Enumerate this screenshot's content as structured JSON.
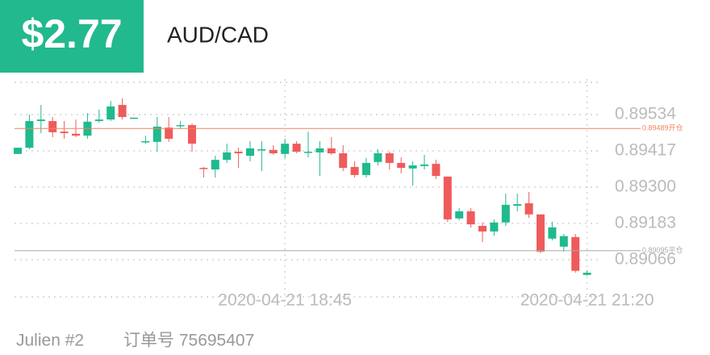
{
  "header": {
    "amount": "$2.77",
    "symbol": "AUD/CAD"
  },
  "footer": {
    "user": "Julien #2",
    "order": "订单号 75695407"
  },
  "chart_data": {
    "type": "candlestick",
    "categories": [
      null,
      null,
      null,
      null,
      null,
      null,
      null,
      null,
      null,
      null,
      null,
      null,
      null,
      null,
      null,
      null,
      null,
      null,
      null,
      null,
      null,
      null,
      null,
      "2020-04-21 18:45",
      null,
      null,
      null,
      null,
      null,
      null,
      null,
      null,
      null,
      null,
      null,
      null,
      null,
      null,
      null,
      null,
      null,
      null,
      null,
      null,
      null,
      null,
      null,
      null,
      null,
      "2020-04-21 21:20"
    ],
    "open": [
      0.89407,
      0.89427,
      0.89513,
      0.89513,
      0.89479,
      0.89472,
      0.89466,
      0.89513,
      0.89518,
      0.89565,
      0.89521,
      0.89446,
      0.89446,
      0.89492,
      0.895,
      0.895,
      0.89362,
      0.89357,
      0.89388,
      0.89414,
      0.89401,
      0.8942,
      0.8942,
      0.89407,
      0.8944,
      0.89412,
      0.89412,
      0.89425,
      0.89409,
      0.89365,
      0.89339,
      0.89381,
      0.89409,
      0.89378,
      0.8936,
      0.89368,
      0.89375,
      0.89334,
      0.89199,
      0.89222,
      0.89175,
      0.89157,
      0.89186,
      0.8924,
      0.89248,
      0.89212,
      0.89134,
      0.89108,
      0.89139,
      0.89017
    ],
    "high": [
      0.89427,
      0.89534,
      0.89565,
      0.89526,
      0.89513,
      0.89518,
      0.89539,
      0.8955,
      0.89578,
      0.89586,
      0.89524,
      0.89466,
      0.89526,
      0.89526,
      0.89513,
      0.89505,
      0.89365,
      0.89401,
      0.8944,
      0.89427,
      0.89448,
      0.89448,
      0.89435,
      0.89456,
      0.89448,
      0.89479,
      0.89448,
      0.89461,
      0.89435,
      0.89383,
      0.89394,
      0.89422,
      0.89414,
      0.89396,
      0.89383,
      0.89404,
      0.89388,
      0.89334,
      0.89232,
      0.89232,
      0.89186,
      0.89196,
      0.89279,
      0.89279,
      0.89284,
      0.89212,
      0.89188,
      0.89149,
      0.89149,
      0.89032
    ],
    "low": [
      0.89407,
      0.89422,
      0.89474,
      0.89461,
      0.89456,
      0.89461,
      0.89456,
      0.89508,
      0.89513,
      0.89518,
      0.89521,
      0.8944,
      0.89414,
      0.89446,
      0.89487,
      0.89414,
      0.89331,
      0.89331,
      0.89378,
      0.89362,
      0.89383,
      0.89352,
      0.89404,
      0.89394,
      0.89409,
      0.89396,
      0.89336,
      0.89404,
      0.89352,
      0.89331,
      0.89331,
      0.8937,
      0.89357,
      0.89344,
      0.89305,
      0.89357,
      0.89326,
      0.89188,
      0.89193,
      0.8917,
      0.89123,
      0.89144,
      0.89175,
      0.89222,
      0.89201,
      0.89087,
      0.89128,
      0.89092,
      0.89024,
      0.89014
    ],
    "close": [
      0.89427,
      0.89513,
      0.89518,
      0.89477,
      0.89474,
      0.89466,
      0.89511,
      0.89518,
      0.8956,
      0.89526,
      0.89524,
      0.89448,
      0.89495,
      0.89456,
      0.895,
      0.8944,
      0.8936,
      0.89388,
      0.89412,
      0.89409,
      0.89425,
      0.89422,
      0.89409,
      0.8944,
      0.89414,
      0.89414,
      0.89425,
      0.89409,
      0.89362,
      0.89339,
      0.89378,
      0.89409,
      0.89378,
      0.89362,
      0.8937,
      0.89373,
      0.89336,
      0.89196,
      0.89222,
      0.8918,
      0.89157,
      0.89186,
      0.89243,
      0.89245,
      0.89212,
      0.89092,
      0.8917,
      0.89142,
      0.8903,
      0.89024
    ],
    "up_color": "#1fba8e",
    "down_color": "#ef5b5b",
    "ylim": [
      0.88946,
      0.89638
    ],
    "yticks": [
      0.89534,
      0.89417,
      {
        "value": 0.893,
        "label": "0.89300"
      },
      0.89183,
      0.89066
    ],
    "grid": true,
    "lines": [
      {
        "value": 0.89489,
        "label": "0.89489开仓",
        "color": "#f4845f"
      },
      {
        "value": 0.89095,
        "label": "0.89095平仓",
        "color": "#aaaaaa"
      }
    ]
  }
}
